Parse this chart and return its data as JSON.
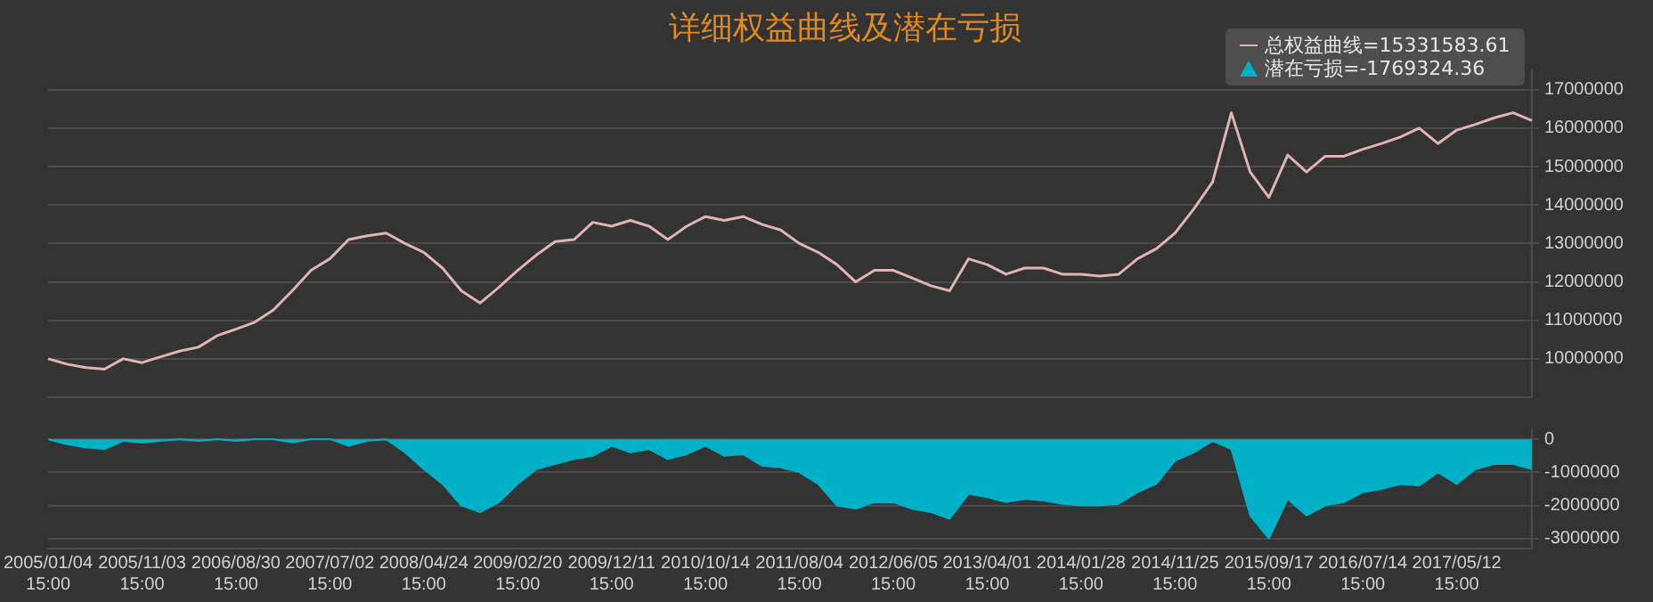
{
  "chart_data": [
    {
      "type": "line",
      "title": "详细权益曲线及潜在亏损",
      "categories": [
        "2005/01/04 15:00",
        null,
        null,
        null,
        null,
        "2005/11/03 15:00",
        null,
        null,
        null,
        null,
        "2006/08/30 15:00",
        null,
        null,
        null,
        null,
        "2007/07/02 15:00",
        null,
        null,
        null,
        null,
        "2008/04/24 15:00",
        null,
        null,
        null,
        null,
        "2009/02/20 15:00",
        null,
        null,
        null,
        null,
        "2009/12/11 15:00",
        null,
        null,
        null,
        null,
        "2010/10/14 15:00",
        null,
        null,
        null,
        null,
        "2011/08/04 15:00",
        null,
        null,
        null,
        null,
        "2012/06/05 15:00",
        null,
        null,
        null,
        null,
        "2013/04/01 15:00",
        null,
        null,
        null,
        null,
        "2014/01/28 15:00",
        null,
        null,
        null,
        null,
        "2014/11/25 15:00",
        null,
        null,
        null,
        null,
        "2015/09/17 15:00",
        null,
        null,
        null,
        null,
        "2016/07/14 15:00",
        null,
        null,
        null,
        null,
        "2017/05/12 15:00",
        null,
        null,
        null,
        null
      ],
      "series": [
        {
          "color": "#e0b4b4",
          "values": [
            10000000,
            9860000,
            9770000,
            9730000,
            10000000,
            9900000,
            10050000,
            10200000,
            10300000,
            10600000,
            10770000,
            10950000,
            11270000,
            11770000,
            12300000,
            12600000,
            13100000,
            13200000,
            13270000,
            13000000,
            12770000,
            12360000,
            11770000,
            11450000,
            11860000,
            12300000,
            12700000,
            13050000,
            13100000,
            13550000,
            13450000,
            13600000,
            13450000,
            13100000,
            13450000,
            13700000,
            13600000,
            13700000,
            13500000,
            13350000,
            13000000,
            12770000,
            12450000,
            12000000,
            12300000,
            12300000,
            12100000,
            11900000,
            11770000,
            12600000,
            12450000,
            12200000,
            12360000,
            12360000,
            12200000,
            12200000,
            12150000,
            12200000,
            12600000,
            12860000,
            13270000,
            13900000,
            14600000,
            16400000,
            14860000,
            14200000,
            15300000,
            14860000,
            15270000,
            15270000,
            15450000,
            15600000,
            15770000,
            16000000,
            15600000,
            15950000,
            16100000,
            16270000,
            16400000,
            16200000
          ]
        }
      ],
      "ylim": [
        9000000,
        17500000
      ],
      "yticks": [
        10000000,
        11000000,
        12000000,
        13000000,
        14000000,
        15000000,
        16000000,
        17000000
      ],
      "grid": "y",
      "tick_labels": "y",
      "annotations": [
        "总权益曲线=15331583.61",
        "潜在亏损=-1769324.36"
      ]
    },
    {
      "type": "area",
      "categories": [
        "2005/01/04 15:00",
        null,
        null,
        null,
        null,
        "2005/11/03 15:00",
        null,
        null,
        null,
        null,
        "2006/08/30 15:00",
        null,
        null,
        null,
        null,
        "2007/07/02 15:00",
        null,
        null,
        null,
        null,
        "2008/04/24 15:00",
        null,
        null,
        null,
        null,
        "2009/02/20 15:00",
        null,
        null,
        null,
        null,
        "2009/12/11 15:00",
        null,
        null,
        null,
        null,
        "2010/10/14 15:00",
        null,
        null,
        null,
        null,
        "2011/08/04 15:00",
        null,
        null,
        null,
        null,
        "2012/06/05 15:00",
        null,
        null,
        null,
        null,
        "2013/04/01 15:00",
        null,
        null,
        null,
        null,
        "2014/01/28 15:00",
        null,
        null,
        null,
        null,
        "2014/11/25 15:00",
        null,
        null,
        null,
        null,
        "2015/09/17 15:00",
        null,
        null,
        null,
        null,
        "2016/07/14 15:00",
        null,
        null,
        null,
        null,
        "2017/05/12 15:00",
        null,
        null,
        null,
        null
      ],
      "series": [
        {
          "color": "#00b0c6",
          "values": [
            0,
            -150000,
            -250000,
            -300000,
            -50000,
            -100000,
            -50000,
            0,
            -50000,
            0,
            -50000,
            0,
            0,
            -100000,
            0,
            0,
            -200000,
            -50000,
            0,
            -400000,
            -900000,
            -1350000,
            -2000000,
            -2200000,
            -1900000,
            -1350000,
            -900000,
            -750000,
            -600000,
            -500000,
            -200000,
            -400000,
            -300000,
            -600000,
            -450000,
            -200000,
            -500000,
            -450000,
            -800000,
            -850000,
            -1000000,
            -1350000,
            -2000000,
            -2100000,
            -1900000,
            -1900000,
            -2100000,
            -2200000,
            -2400000,
            -1650000,
            -1750000,
            -1900000,
            -1800000,
            -1850000,
            -1950000,
            -2000000,
            -2000000,
            -1950000,
            -1600000,
            -1350000,
            -650000,
            -400000,
            -50000,
            -300000,
            -2300000,
            -3000000,
            -1800000,
            -2300000,
            -2000000,
            -1900000,
            -1600000,
            -1500000,
            -1350000,
            -1400000,
            -1000000,
            -1350000,
            -900000,
            -750000,
            -750000,
            -900000
          ]
        }
      ],
      "ylim": [
        -3300000,
        300000
      ],
      "yticks": [
        0,
        -1000000,
        -2000000,
        -3000000
      ],
      "grid": "y"
    }
  ]
}
